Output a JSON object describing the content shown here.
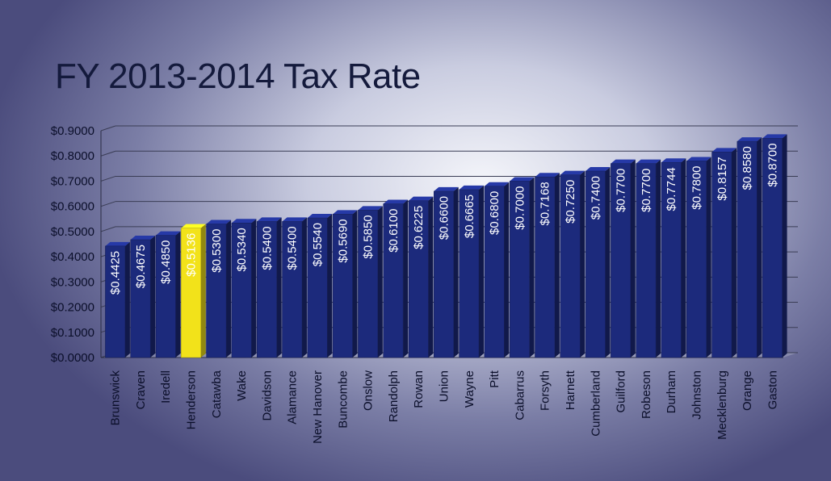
{
  "slide": {
    "title": "FY 2013-2014 Tax Rate"
  },
  "colors": {
    "bar": "#1c2a7c",
    "bar_highlight": "#f2e21a",
    "gridline": "#3a3d55"
  },
  "chart_data": {
    "type": "bar",
    "title": "FY 2013-2014 Tax Rate",
    "xlabel": "",
    "ylabel": "",
    "ylim": [
      0,
      0.9
    ],
    "yticks": [
      "$0.0000",
      "$0.1000",
      "$0.2000",
      "$0.3000",
      "$0.4000",
      "$0.5000",
      "$0.6000",
      "$0.7000",
      "$0.8000",
      "$0.9000"
    ],
    "grid": true,
    "highlight": "Henderson",
    "categories": [
      "Brunswick",
      "Craven",
      "Iredell",
      "Henderson",
      "Catawba",
      "Wake",
      "Davidson",
      "Alamance",
      "New Hanover",
      "Buncombe",
      "Onslow",
      "Randolph",
      "Rowan",
      "Union",
      "Wayne",
      "Pitt",
      "Cabarrus",
      "Forsyth",
      "Harnett",
      "Cumberland",
      "Guilford",
      "Robeson",
      "Durham",
      "Johnston",
      "Mecklenburg",
      "Orange",
      "Gaston"
    ],
    "values": [
      0.4425,
      0.4675,
      0.485,
      0.5136,
      0.53,
      0.534,
      0.54,
      0.54,
      0.554,
      0.569,
      0.585,
      0.61,
      0.6225,
      0.66,
      0.6665,
      0.68,
      0.7,
      0.7168,
      0.725,
      0.74,
      0.77,
      0.77,
      0.7744,
      0.78,
      0.8157,
      0.858,
      0.87
    ],
    "value_labels": [
      "$0.4425",
      "$0.4675",
      "$0.4850",
      "$0.5136",
      "$0.5300",
      "$0.5340",
      "$0.5400",
      "$0.5400",
      "$0.5540",
      "$0.5690",
      "$0.5850",
      "$0.6100",
      "$0.6225",
      "$0.6600",
      "$0.6665",
      "$0.6800",
      "$0.7000",
      "$0.7168",
      "$0.7250",
      "$0.7400",
      "$0.7700",
      "$0.7700",
      "$0.7744",
      "$0.7800",
      "$0.8157",
      "$0.8580",
      "$0.8700"
    ]
  }
}
